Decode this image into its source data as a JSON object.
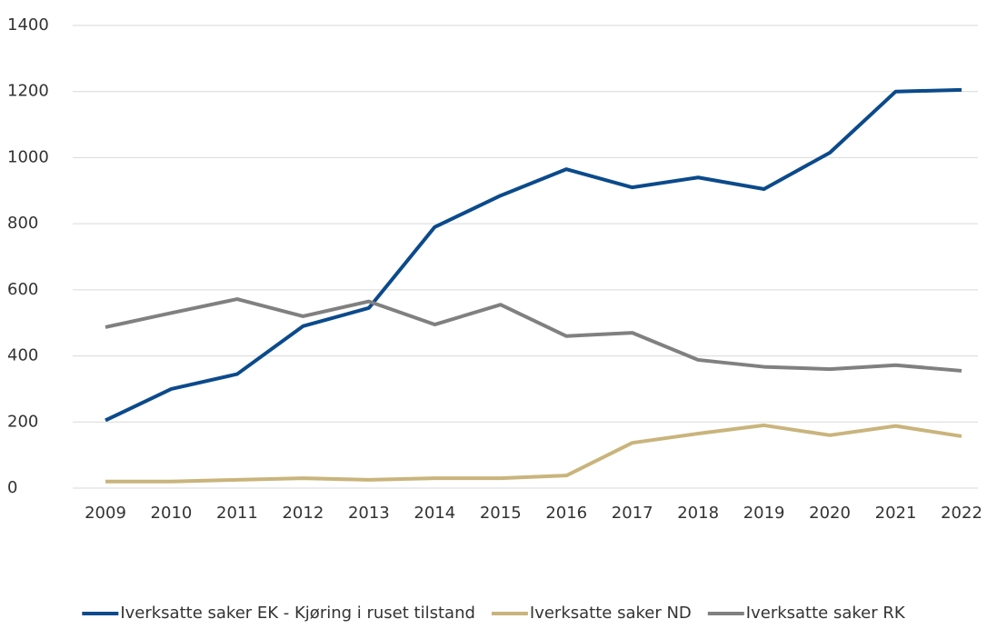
{
  "chart_data": {
    "type": "line",
    "categories": [
      "2009",
      "2010",
      "2011",
      "2012",
      "2013",
      "2014",
      "2015",
      "2016",
      "2017",
      "2018",
      "2019",
      "2020",
      "2021",
      "2022"
    ],
    "series": [
      {
        "name": "Iverksatte saker EK - Kjøring i ruset tilstand",
        "color": "#0b4a8b",
        "values": [
          205,
          300,
          345,
          490,
          545,
          790,
          885,
          965,
          910,
          940,
          905,
          1015,
          1200,
          1205
        ]
      },
      {
        "name": "Iverksatte saker ND",
        "color": "#c9b47c",
        "values": [
          20,
          20,
          25,
          30,
          25,
          30,
          30,
          38,
          137,
          165,
          190,
          160,
          188,
          157
        ]
      },
      {
        "name": "Iverksatte saker RK",
        "color": "#808080",
        "values": [
          487,
          530,
          572,
          520,
          565,
          495,
          555,
          460,
          470,
          388,
          367,
          360,
          372,
          355
        ]
      }
    ],
    "ylim": [
      0,
      1400
    ],
    "yticks": [
      0,
      200,
      400,
      600,
      800,
      1000,
      1200,
      1400
    ],
    "grid": true,
    "legend": "bottom"
  }
}
